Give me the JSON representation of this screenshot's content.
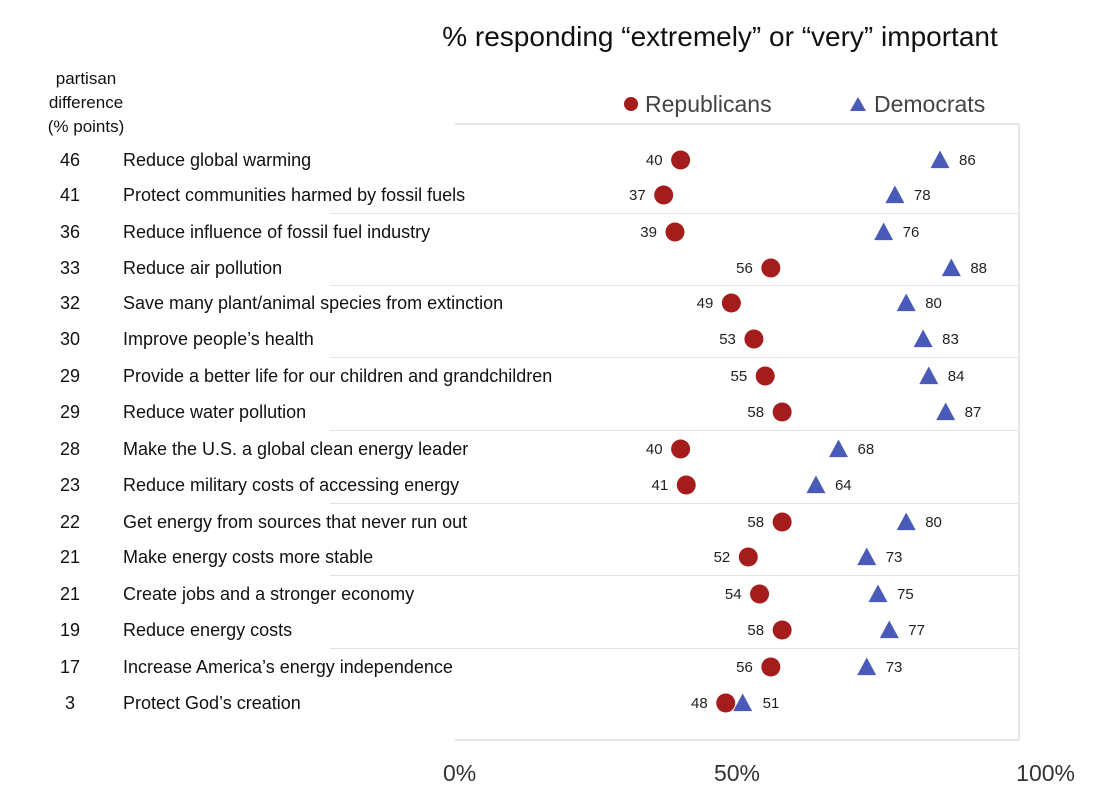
{
  "chart_data": {
    "type": "scatter",
    "title": "% responding “extremely” or “very” important",
    "side_header": [
      "partisan",
      "difference",
      "(% points)"
    ],
    "xlim": [
      0,
      100
    ],
    "x_ticks": [
      "0%",
      "50%",
      "100%"
    ],
    "legend_position": "top-right",
    "series": [
      {
        "name": "Republicans",
        "color": "#a51c1c",
        "marker": "circle"
      },
      {
        "name": "Democrats",
        "color": "#4a5ab8",
        "marker": "triangle"
      }
    ],
    "rows": [
      {
        "label": "Reduce global warming",
        "diff": "46",
        "rep": 40,
        "dem": 86
      },
      {
        "label": "Protect communities harmed by fossil fuels",
        "diff": "41",
        "rep": 37,
        "dem": 78
      },
      {
        "label": "Reduce influence of fossil fuel industry",
        "diff": "36",
        "rep": 39,
        "dem": 76
      },
      {
        "label": "Reduce air pollution",
        "diff": "33",
        "rep": 56,
        "dem": 88
      },
      {
        "label": "Save many plant/animal species from extinction",
        "diff": "32",
        "rep": 49,
        "dem": 80
      },
      {
        "label": "Improve people’s health",
        "diff": "30",
        "rep": 53,
        "dem": 83
      },
      {
        "label": "Provide a better life for our children and grandchildren",
        "diff": "29",
        "rep": 55,
        "dem": 84
      },
      {
        "label": "Reduce water pollution",
        "diff": "29",
        "rep": 58,
        "dem": 87
      },
      {
        "label": "Make the U.S. a global clean energy leader",
        "diff": "28",
        "rep": 40,
        "dem": 68
      },
      {
        "label": "Reduce military costs of accessing energy",
        "diff": "23",
        "rep": 41,
        "dem": 64
      },
      {
        "label": "Get energy from sources that never run out",
        "diff": "22",
        "rep": 58,
        "dem": 80
      },
      {
        "label": "Make energy costs more stable",
        "diff": "21",
        "rep": 52,
        "dem": 73
      },
      {
        "label": "Create jobs and a stronger economy",
        "diff": "21",
        "rep": 54,
        "dem": 75
      },
      {
        "label": "Reduce energy costs",
        "diff": "19",
        "rep": 58,
        "dem": 77
      },
      {
        "label": "Increase America’s energy independence",
        "diff": "17",
        "rep": 56,
        "dem": 73
      },
      {
        "label": "Protect God’s creation",
        "diff": "3",
        "rep": 48,
        "dem": 51
      }
    ]
  }
}
